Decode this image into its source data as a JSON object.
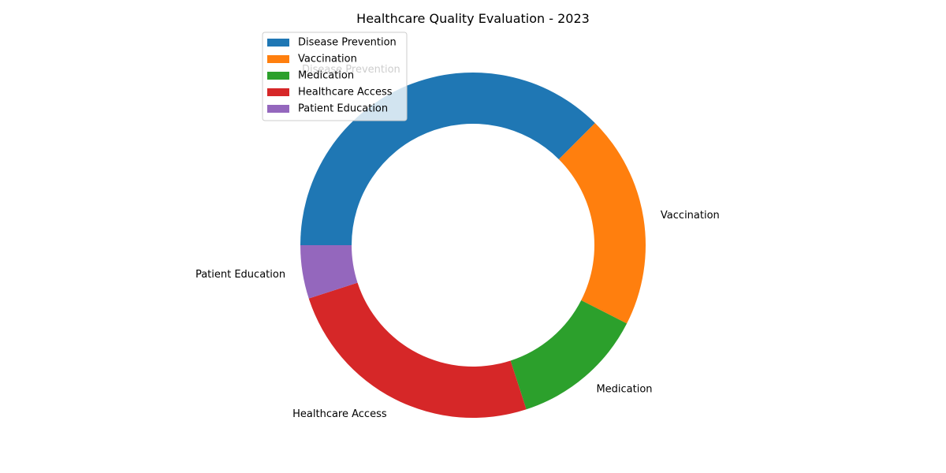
{
  "chart_data": {
    "type": "pie",
    "variant": "donut",
    "title": "Healthcare Quality Evaluation - 2023",
    "categories": [
      "Disease Prevention",
      "Vaccination",
      "Medication",
      "Healthcare Access",
      "Patient Education"
    ],
    "values": [
      37.5,
      20,
      12.5,
      25,
      5
    ],
    "colors": [
      "#1f77b4",
      "#ff7f0e",
      "#2ca02c",
      "#d62728",
      "#9467bd"
    ],
    "start_angle_deg": 180,
    "direction": "clockwise",
    "legend_position": "upper-left"
  }
}
